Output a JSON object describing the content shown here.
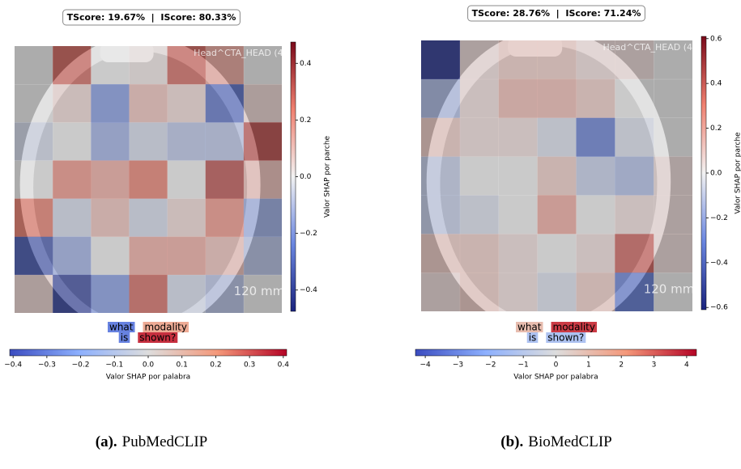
{
  "panels": [
    {
      "score_label": "TScore: 19.67%  |  IScore: 80.33%",
      "image_texts": [
        "Head^CTA_HEAD (4",
        "120 mm"
      ],
      "patch_values": [
        [
          0,
          0.3,
          0,
          0.02,
          0.3,
          0.15,
          0
        ],
        [
          0,
          0.05,
          -0.2,
          0.1,
          0.05,
          -0.3,
          0.05
        ],
        [
          -0.05,
          0,
          -0.15,
          -0.05,
          -0.1,
          -0.1,
          0.35
        ],
        [
          0,
          0.2,
          0.15,
          0.25,
          0,
          0.35,
          0.1
        ],
        [
          0.25,
          -0.05,
          0.1,
          -0.05,
          0.05,
          0.2,
          -0.15
        ],
        [
          -0.35,
          -0.15,
          0,
          0.15,
          0.15,
          0.1,
          -0.1
        ],
        [
          0.05,
          -0.4,
          -0.2,
          0.3,
          -0.05,
          -0.1,
          0
        ]
      ],
      "patch_colorbar": {
        "label": "Valor SHAP por parche",
        "lim": [
          -0.475,
          0.475
        ],
        "colors": [
          "#1a237e",
          "#6a86e0",
          "#f2f2f2",
          "#f08070",
          "#7a0a1a"
        ],
        "ticks": [
          {
            "value": -0.4,
            "label": "−0.4"
          },
          {
            "value": -0.2,
            "label": "−0.2"
          },
          {
            "value": 0,
            "label": "0.0"
          },
          0.2,
          0.4
        ]
      },
      "word_lines": [
        [
          {
            "text": "what",
            "value": -0.3
          },
          {
            "text": "modality",
            "value": 0.15
          }
        ],
        [
          {
            "text": "is",
            "value": -0.3
          },
          {
            "text": "shown?",
            "value": 0.35
          }
        ]
      ],
      "word_colorbar": {
        "label": "Valor SHAP por palabra",
        "lim": [
          -0.41,
          0.41
        ],
        "colors": [
          "#3b4cc0",
          "#8db0fe",
          "#dddddd",
          "#f4987a",
          "#b40426"
        ],
        "ticks": [
          {
            "value": -0.4,
            "label": "−0.4"
          },
          {
            "value": -0.3,
            "label": "−0.3"
          },
          {
            "value": -0.2,
            "label": "−0.2"
          },
          {
            "value": -0.1,
            "label": "−0.1"
          },
          {
            "value": 0,
            "label": "0.0"
          },
          0.1,
          0.2,
          0.3,
          0.4
        ]
      },
      "caption_tag": "(a).",
      "caption": "PubMedCLIP"
    },
    {
      "score_label": "TScore: 28.76%  |  IScore: 71.24%",
      "image_texts": [
        "Head^CTA_HEAD (4",
        "120 mm"
      ],
      "patch_values": [
        [
          -0.55,
          0.05,
          0.1,
          0.1,
          0.05,
          0.05,
          0
        ],
        [
          -0.15,
          0.05,
          0.15,
          0.15,
          0.1,
          0,
          0
        ],
        [
          0.1,
          0.05,
          0.05,
          -0.05,
          -0.35,
          -0.05,
          0
        ],
        [
          -0.1,
          0,
          0,
          0.1,
          -0.1,
          -0.15,
          0.05
        ],
        [
          -0.1,
          -0.05,
          0,
          0.2,
          0,
          0.05,
          0.05
        ],
        [
          0.1,
          0.1,
          0.05,
          0,
          0.05,
          0.4,
          0.05
        ],
        [
          0.05,
          0.1,
          0.05,
          -0.05,
          0.1,
          -0.35,
          0
        ]
      ],
      "patch_colorbar": {
        "label": "Valor SHAP por parche",
        "lim": [
          -0.61,
          0.61
        ],
        "colors": [
          "#1a237e",
          "#6a86e0",
          "#f2f2f2",
          "#f08070",
          "#7a0a1a"
        ],
        "ticks": [
          {
            "value": -0.6,
            "label": "−0.6"
          },
          {
            "value": -0.4,
            "label": "−0.4"
          },
          {
            "value": -0.2,
            "label": "−0.2"
          },
          {
            "value": 0,
            "label": "0.0"
          },
          0.2,
          0.4,
          0.6
        ]
      },
      "word_lines": [
        [
          {
            "text": "what",
            "value": 1
          },
          {
            "text": "modality",
            "value": 3.5
          }
        ],
        [
          {
            "text": "is",
            "value": -1.3
          },
          {
            "text": "shown?",
            "value": -1.3
          }
        ]
      ],
      "word_colorbar": {
        "label": "Valor SHAP por palabra",
        "lim": [
          -4.3,
          4.3
        ],
        "colors": [
          "#3b4cc0",
          "#8db0fe",
          "#dddddd",
          "#f4987a",
          "#b40426"
        ],
        "ticks": [
          {
            "value": -4,
            "label": "−4"
          },
          {
            "value": -3,
            "label": "−3"
          },
          {
            "value": -2,
            "label": "−2"
          },
          {
            "value": -1,
            "label": "−1"
          },
          0,
          1,
          2,
          3,
          4
        ]
      },
      "caption_tag": "(b).",
      "caption": "BioMedCLIP"
    }
  ]
}
